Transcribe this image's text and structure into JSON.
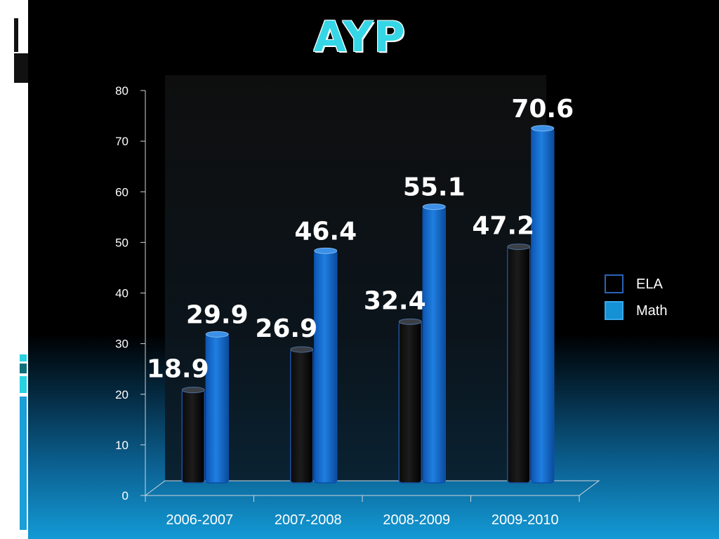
{
  "slide": {
    "title": "AYP"
  },
  "colors": {
    "title": "#35d6e6",
    "ela_fill": "#060606",
    "ela_edge": "#1b4fa0",
    "math_fill": "#1a72d6",
    "math_edge": "#0d4fa8",
    "axis": "#cfd6de",
    "background_bottom": "#139ad6"
  },
  "chart_data": {
    "type": "bar",
    "title": "AYP",
    "categories": [
      "2006-2007",
      "2007-2008",
      "2008-2009",
      "2009-2010"
    ],
    "series": [
      {
        "name": "ELA",
        "values": [
          18.9,
          26.9,
          32.4,
          47.2
        ]
      },
      {
        "name": "Math",
        "values": [
          29.9,
          46.4,
          55.1,
          70.6
        ]
      }
    ],
    "data_labels": [
      [
        "18.9",
        "26.9",
        "32.4",
        "47.2"
      ],
      [
        "29.9",
        "46.4",
        "55.1",
        "70.6"
      ]
    ],
    "y_ticks": [
      "0",
      "10",
      "20",
      "30",
      "40",
      "50",
      "60",
      "70",
      "80"
    ],
    "ylim": [
      0,
      80
    ],
    "xlabel": "",
    "ylabel": "",
    "legend_position": "right",
    "grid": false,
    "style": "3d-cylinder"
  }
}
